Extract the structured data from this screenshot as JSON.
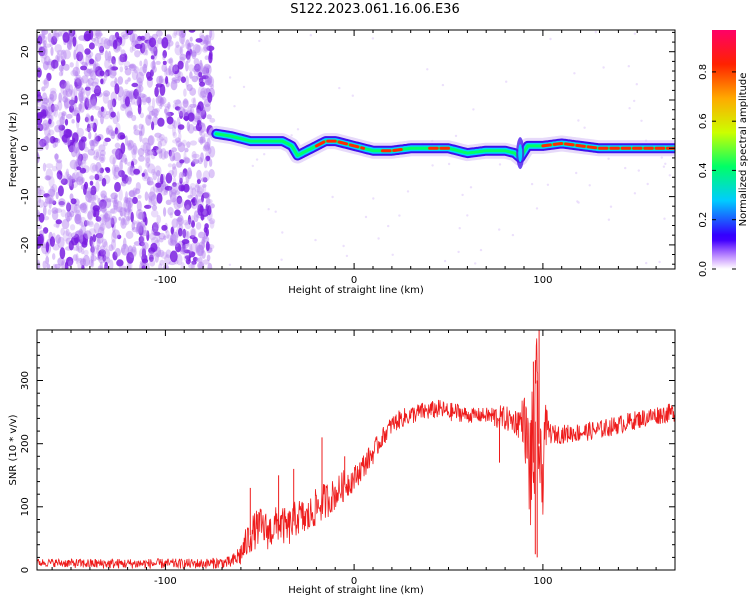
{
  "title": "S122.2023.061.16.06.E36",
  "colors": {
    "series": "#ee1c1c",
    "noise": "#8a2be2",
    "colorbar_stops": [
      "#8b00ff",
      "#3300ff",
      "#00ccff",
      "#00ff66",
      "#ccff00",
      "#ffaa00",
      "#ff2200",
      "#ff0066"
    ]
  },
  "chart_data": [
    {
      "type": "heatmap",
      "title": "",
      "xlabel": "Height of straight line (km)",
      "ylabel": "Frequency (Hz)",
      "xlim": [
        -168,
        170
      ],
      "ylim": [
        -25,
        24.5
      ],
      "xticks": [
        -100,
        0,
        100
      ],
      "yticks": [
        -20,
        -10,
        0,
        10,
        20
      ],
      "colorbar": {
        "label": "Normalized spectral amplitude",
        "range": [
          0,
          0.97
        ],
        "ticks": [
          0.0,
          0.2,
          0.4,
          0.6,
          0.8
        ]
      },
      "noise_region_x": [
        -168,
        -75
      ],
      "ridge": {
        "x": [
          -73,
          -65,
          -55,
          -45,
          -38,
          -33,
          -30,
          -25,
          -20,
          -15,
          -10,
          0,
          10,
          20,
          30,
          40,
          50,
          60,
          70,
          80,
          85,
          88,
          92,
          100,
          110,
          120,
          130,
          140,
          150,
          160,
          170
        ],
        "y": [
          3,
          2.5,
          1.5,
          1.5,
          1.5,
          0.5,
          -1.5,
          -0.5,
          0.5,
          1.5,
          1.5,
          0.5,
          -0.5,
          -0.5,
          0,
          0,
          0,
          -1,
          -0.5,
          -0.5,
          -1,
          -2,
          0.5,
          0.5,
          1,
          0.5,
          0,
          0,
          0,
          0,
          0
        ],
        "peak_amplitude_x": [
          [
            -20,
            5
          ],
          [
            15,
            25
          ],
          [
            40,
            50
          ],
          [
            100,
            170
          ]
        ]
      },
      "grid": false
    },
    {
      "type": "line",
      "title": "",
      "xlabel": "Height of straight line (km)",
      "ylabel": "SNR (10 * v/v)",
      "xlim": [
        -168,
        170
      ],
      "ylim": [
        0,
        380
      ],
      "xticks": [
        -100,
        0,
        100
      ],
      "yticks": [
        0,
        100,
        200,
        300
      ],
      "series": [
        {
          "x": [
            -168,
            -140,
            -120,
            -100,
            -80,
            -65,
            -60,
            -55,
            -50,
            -45,
            -40,
            -35,
            -30,
            -25,
            -20,
            -15,
            -10,
            -5,
            0,
            5,
            10,
            15,
            20,
            25,
            30,
            35,
            40,
            45,
            50,
            55,
            60,
            65,
            70,
            75,
            80,
            85,
            88,
            90,
            93,
            95,
            97,
            99,
            101,
            103,
            105,
            110,
            120,
            130,
            140,
            150,
            160,
            170
          ],
          "values": [
            12,
            10,
            10,
            10,
            10,
            12,
            25,
            55,
            70,
            60,
            75,
            65,
            85,
            80,
            100,
            110,
            120,
            135,
            145,
            165,
            185,
            210,
            230,
            240,
            245,
            250,
            252,
            255,
            250,
            250,
            245,
            245,
            245,
            242,
            240,
            235,
            235,
            240,
            160,
            170,
            300,
            100,
            230,
            220,
            215,
            215,
            218,
            222,
            230,
            238,
            245,
            250
          ],
          "noise_amplitude": [
            6,
            8,
            8,
            8,
            8,
            10,
            20,
            30,
            30,
            30,
            30,
            30,
            30,
            30,
            30,
            30,
            25,
            25,
            20,
            20,
            18,
            15,
            15,
            15,
            15,
            15,
            15,
            15,
            15,
            15,
            12,
            12,
            12,
            20,
            20,
            20,
            30,
            40,
            100,
            130,
            80,
            120,
            40,
            20,
            15,
            15,
            15,
            15,
            15,
            15,
            15,
            15
          ],
          "spikes": [
            [
              -55,
              130
            ],
            [
              -40,
              150
            ],
            [
              -32,
              160
            ],
            [
              -17,
              210
            ],
            [
              -5,
              180
            ],
            [
              77,
              170
            ],
            [
              95,
              330
            ],
            [
              98,
              380
            ],
            [
              96,
              25
            ],
            [
              97,
              20
            ]
          ]
        }
      ],
      "grid": false
    }
  ]
}
